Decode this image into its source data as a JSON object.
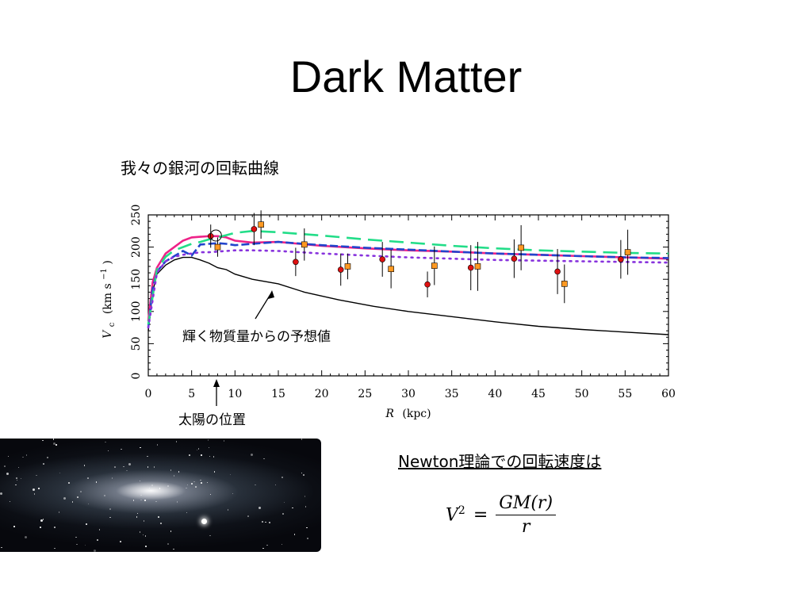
{
  "slide": {
    "title": "Dark Matter"
  },
  "chart_caption": "我々の銀河の回転曲線",
  "chart_data": {
    "type": "line",
    "title": "",
    "xlabel_symbol": "R",
    "xlabel_unit": "(kpc)",
    "ylabel_symbol": "V",
    "ylabel_subscript": "c",
    "ylabel_unit": "(km s",
    "ylabel_exponent": "−1",
    "ylabel_close": ")",
    "xlim": [
      0,
      60
    ],
    "ylim": [
      0,
      250
    ],
    "xticks": [
      0,
      5,
      10,
      15,
      20,
      25,
      30,
      35,
      40,
      45,
      50,
      55,
      60
    ],
    "yticks": [
      0,
      50,
      100,
      150,
      200,
      250
    ],
    "grid": false,
    "series": [
      {
        "color": "#000000",
        "dash": "solid",
        "x": [
          0,
          0.5,
          1,
          2,
          3,
          4,
          5,
          6,
          7,
          8,
          9,
          10,
          12,
          15,
          18,
          22,
          26,
          30,
          35,
          40,
          45,
          50,
          55,
          60
        ],
        "y": [
          70,
          130,
          158,
          172,
          180,
          184,
          184,
          180,
          175,
          168,
          165,
          158,
          150,
          143,
          130,
          118,
          108,
          100,
          92,
          84,
          77,
          72,
          68,
          64
        ]
      },
      {
        "color": "#ee2288",
        "dash": "solid",
        "x": [
          0,
          0.5,
          1,
          2,
          3,
          4,
          5,
          6,
          7,
          8,
          9,
          10,
          12,
          15,
          20,
          25,
          30,
          35,
          40,
          45,
          50,
          55,
          60
        ],
        "y": [
          85,
          145,
          168,
          190,
          200,
          210,
          215,
          216,
          217,
          217,
          215,
          210,
          207,
          208,
          202,
          198,
          195,
          193,
          190,
          188,
          186,
          184,
          182
        ]
      },
      {
        "color": "#2244cc",
        "dash": "dashed",
        "x": [
          0,
          0.5,
          1,
          2,
          3,
          4,
          5,
          6,
          7,
          8,
          9,
          10,
          12,
          15,
          20,
          25,
          30,
          35,
          40,
          45,
          50,
          55,
          60
        ],
        "y": [
          75,
          135,
          162,
          178,
          186,
          194,
          187,
          204,
          205,
          206,
          205,
          203,
          205,
          208,
          203,
          199,
          196,
          193,
          190,
          188,
          186,
          184,
          183
        ]
      },
      {
        "color": "#22dd88",
        "dash": "longdash",
        "x": [
          0,
          1,
          2,
          3,
          4,
          5,
          6,
          7,
          8,
          10,
          12,
          15,
          20,
          25,
          30,
          35,
          40,
          45,
          50,
          55,
          60
        ],
        "y": [
          80,
          165,
          185,
          195,
          200,
          205,
          208,
          212,
          215,
          222,
          225,
          223,
          218,
          212,
          207,
          202,
          198,
          195,
          193,
          191,
          190
        ]
      },
      {
        "color": "#8833dd",
        "dash": "dotted",
        "x": [
          0,
          1,
          2,
          3,
          4,
          5,
          6,
          7,
          8,
          10,
          12,
          15,
          20,
          25,
          30,
          35,
          40,
          45,
          50,
          55,
          60
        ],
        "y": [
          75,
          160,
          178,
          185,
          188,
          190,
          192,
          192,
          193,
          195,
          195,
          194,
          190,
          187,
          184,
          182,
          180,
          179,
          178,
          177,
          176
        ]
      }
    ],
    "points_circle": {
      "color": "#dd1111",
      "data": [
        {
          "x": 7.2,
          "y": 217,
          "err": 18
        },
        {
          "x": 12.2,
          "y": 228,
          "err": 25
        },
        {
          "x": 17,
          "y": 177,
          "err": 22
        },
        {
          "x": 22.2,
          "y": 165,
          "err": 25
        },
        {
          "x": 27,
          "y": 181,
          "err": 27
        },
        {
          "x": 32.2,
          "y": 142,
          "err": 20
        },
        {
          "x": 37.2,
          "y": 168,
          "err": 35
        },
        {
          "x": 42.2,
          "y": 182,
          "err": 30
        },
        {
          "x": 47.2,
          "y": 162,
          "err": 35
        },
        {
          "x": 54.5,
          "y": 181,
          "err": 30
        }
      ]
    },
    "points_square": {
      "color": "#ff9922",
      "data": [
        {
          "x": 8,
          "y": 200,
          "err": 15
        },
        {
          "x": 13,
          "y": 235,
          "err": 22
        },
        {
          "x": 18,
          "y": 204,
          "err": 25
        },
        {
          "x": 23,
          "y": 170,
          "err": 20
        },
        {
          "x": 28,
          "y": 166,
          "err": 30
        },
        {
          "x": 33,
          "y": 171,
          "err": 30
        },
        {
          "x": 38,
          "y": 170,
          "err": 38
        },
        {
          "x": 43,
          "y": 199,
          "err": 35
        },
        {
          "x": 48,
          "y": 143,
          "err": 30
        },
        {
          "x": 55.3,
          "y": 192,
          "err": 35
        }
      ]
    },
    "sun_marker": {
      "x": 7.8,
      "y": 218
    },
    "annotation_luminous": "輝く物質量からの予想値",
    "annotation_sun": "太陽の位置"
  },
  "newton_label": "Newton理論での回転速度は",
  "formula": {
    "lhs": "V",
    "lhs_exp": "2",
    "eq": "=",
    "num": "GM(r)",
    "den": "r"
  },
  "galaxy_image_alt": "Andromeda galaxy photo"
}
